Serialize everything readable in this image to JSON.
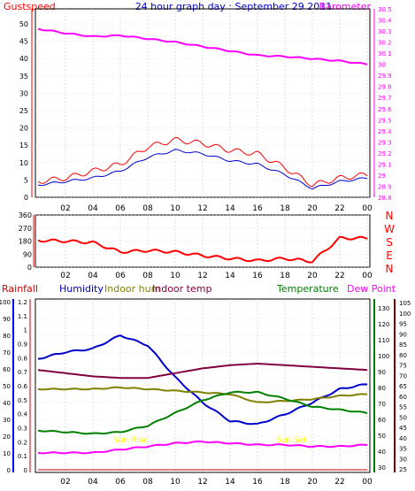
{
  "header": {
    "left_label": "Gustspeed",
    "title": "24 hour graph day : September 29 2011",
    "right_label": "Barometer"
  },
  "colors": {
    "gust": "#ff0000",
    "wind": "#0000cc",
    "barometer": "#ff00ff",
    "direction": "#ff0000",
    "rainfall": "#cc0000",
    "humidity": "#0000cc",
    "indoor_hum": "#808000",
    "indoor_temp": "#800040",
    "temperature": "#008000",
    "dew_point": "#ff00ff",
    "axis_rain": "#0000ff",
    "axis_temp": "#008000",
    "axis_right2": "#800000",
    "grid": "#c8c8c8"
  },
  "panel1": {
    "left_ticks": [
      "50",
      "45",
      "40",
      "35",
      "30",
      "25",
      "20",
      "15",
      "10",
      "5",
      "0"
    ],
    "right_ticks": [
      "30.5",
      "30.4",
      "30.3",
      "30.2",
      "30.1",
      "30",
      "29.9",
      "29.8",
      "29.7",
      "29.6",
      "29.5",
      "29.4",
      "29.3",
      "29.2",
      "29.1",
      "29",
      "28.9",
      "28.8"
    ],
    "x_ticks": [
      "02",
      "04",
      "06",
      "08",
      "10",
      "12",
      "14",
      "16",
      "18",
      "20",
      "22",
      "00"
    ]
  },
  "panel2": {
    "left_ticks": [
      "360",
      "270",
      "180",
      "90",
      "0"
    ],
    "compass": [
      "N",
      "W",
      "S",
      "E",
      "N"
    ],
    "x_ticks": [
      "02",
      "04",
      "06",
      "08",
      "10",
      "12",
      "14",
      "16",
      "18",
      "20",
      "22",
      "00"
    ]
  },
  "panel3": {
    "legend": {
      "rainfall": "Rainfall",
      "humidity": "Humidity",
      "indoor_hum": "Indoor hum",
      "indoor_temp": "Indoor temp",
      "temperature": "Temperature",
      "dew_point": "Dew Point"
    },
    "rain_ticks": [
      "1.2",
      "1.1",
      "1",
      "0.9",
      "0.8",
      "0.7",
      "0.6",
      "0.5",
      "0.4",
      "0.3",
      "0.2",
      "0.1",
      "0"
    ],
    "humidity_ticks": [
      "100",
      "90",
      "80",
      "70",
      "60",
      "50",
      "40",
      "30",
      "20",
      "10",
      "0"
    ],
    "temp_ticks": [
      "130",
      "120",
      "110",
      "100",
      "90",
      "80",
      "70",
      "60",
      "50",
      "40",
      "30"
    ],
    "right2_ticks": [
      "105",
      "100",
      "95",
      "90",
      "85",
      "80",
      "75",
      "70",
      "65",
      "60",
      "55",
      "50",
      "45",
      "40",
      "35",
      "30",
      "25"
    ],
    "x_ticks": [
      "02",
      "04",
      "06",
      "08",
      "10",
      "12",
      "14",
      "16",
      "18",
      "20",
      "22",
      "00"
    ],
    "annotations": [
      "Sun Rise",
      "Sun Set"
    ]
  },
  "chart_data": [
    {
      "type": "line",
      "x": [
        "00",
        "02",
        "04",
        "06",
        "08",
        "10",
        "12",
        "14",
        "16",
        "18",
        "20",
        "22",
        "00"
      ],
      "ylim_left": [
        0,
        50
      ],
      "ylim_right": [
        28.8,
        30.5
      ],
      "series": [
        {
          "name": "Gustspeed",
          "axis": "left",
          "values": [
            2,
            3,
            5,
            7,
            12,
            14,
            13,
            11,
            10,
            6,
            1,
            3,
            4
          ]
        },
        {
          "name": "",
          "axis": "left",
          "values": [
            1,
            2,
            3,
            5,
            9,
            11,
            10,
            8,
            7,
            4,
            0,
            2,
            3
          ]
        },
        {
          "name": "Barometer",
          "axis": "right",
          "values": [
            30.32,
            30.28,
            30.25,
            30.26,
            30.23,
            30.2,
            30.16,
            30.12,
            30.08,
            30.07,
            30.05,
            30.03,
            30.0
          ]
        }
      ]
    },
    {
      "type": "line",
      "x": [
        "00",
        "02",
        "04",
        "06",
        "08",
        "10",
        "12",
        "14",
        "16",
        "18",
        "20",
        "22",
        "00"
      ],
      "ylim": [
        0,
        360
      ],
      "series": [
        {
          "name": "",
          "values": [
            185,
            180,
            170,
            105,
            115,
            105,
            80,
            60,
            45,
            60,
            40,
            200,
            200
          ]
        }
      ]
    },
    {
      "type": "line",
      "x": [
        "00",
        "02",
        "04",
        "06",
        "08",
        "10",
        "12",
        "14",
        "16",
        "18",
        "20",
        "22",
        "00"
      ],
      "ylim_rain": [
        0,
        1.2
      ],
      "ylim_humidity": [
        0,
        100
      ],
      "ylim_temp": [
        30,
        130
      ],
      "series": [
        {
          "name": "Rainfall",
          "axis": "rain",
          "values": [
            0,
            0,
            0,
            0,
            0,
            0,
            0,
            0,
            0,
            0,
            0,
            0,
            0
          ]
        },
        {
          "name": "Humidity",
          "axis": "humidity",
          "values": [
            66,
            70,
            72,
            80,
            74,
            55,
            40,
            29,
            27,
            33,
            40,
            48,
            51
          ]
        },
        {
          "name": "Indoor hum",
          "axis": "humidity",
          "values": [
            48,
            48,
            48,
            49,
            48,
            47,
            46,
            45,
            40,
            41,
            42,
            44,
            45
          ]
        },
        {
          "name": "Indoor temp",
          "axis": "temp",
          "values": [
            91,
            89,
            87,
            86,
            86,
            89,
            92,
            94,
            95,
            94,
            93,
            92,
            91
          ]
        },
        {
          "name": "Temperature",
          "axis": "temp",
          "values": [
            53,
            52,
            51,
            52,
            56,
            64,
            72,
            77,
            77,
            73,
            68,
            66,
            64
          ]
        },
        {
          "name": "Dew Point",
          "axis": "temp",
          "values": [
            39,
            39,
            39,
            41,
            43,
            45,
            46,
            45,
            44,
            44,
            43,
            43,
            44
          ]
        }
      ]
    }
  ]
}
